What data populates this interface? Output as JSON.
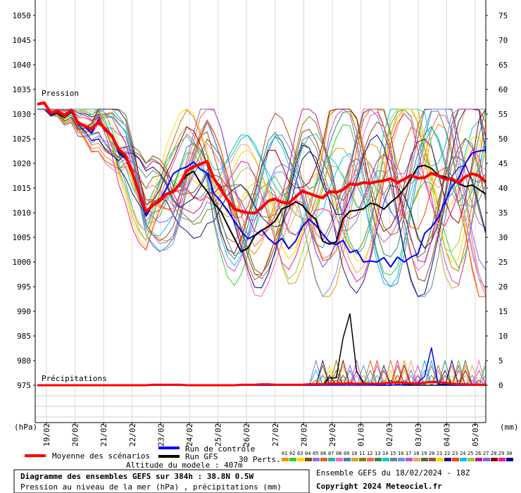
{
  "chart_data": {
    "type": "line",
    "pressure_label": "Pression",
    "precip_label": "Précipitations",
    "left_unit": "(hPa)",
    "right_unit": "(mm)",
    "pressure_ylim": [
      975,
      1050
    ],
    "pressure_ticks": [
      1050,
      1045,
      1040,
      1035,
      1030,
      1025,
      1020,
      1015,
      1010,
      1005,
      1000,
      995,
      990,
      985,
      980,
      975
    ],
    "precip_ylim": [
      0,
      75
    ],
    "precip_ticks": [
      75,
      70,
      65,
      60,
      55,
      50,
      45,
      40,
      35,
      30,
      25,
      20,
      15,
      10,
      5,
      0
    ],
    "date_ticks": [
      "19/02",
      "20/02",
      "21/02",
      "22/02",
      "23/02",
      "24/02",
      "25/02",
      "26/02",
      "27/02",
      "28/02",
      "29/02",
      "01/03",
      "02/03",
      "03/03",
      "04/03",
      "05/03"
    ],
    "step_hours": 6,
    "series": [
      {
        "name": "Moyenne des scénarios",
        "color": "#ff0000",
        "kind": "pressure",
        "values": [
          1032,
          1032.3,
          1030.2,
          1030.6,
          1029.6,
          1030.8,
          1028.2,
          1027.6,
          1026.9,
          1028.4,
          1027.0,
          1025.5,
          1022.8,
          1021.6,
          1018.0,
          1014.0,
          1010.2,
          1011.5,
          1012.5,
          1013.8,
          1014.2,
          1015.9,
          1018.5,
          1019.3,
          1019.9,
          1020.4,
          1016.9,
          1014.7,
          1012.6,
          1010.7,
          1010.3,
          1010.0,
          1009.9,
          1011.0,
          1012.4,
          1012.8,
          1012.1,
          1011.9,
          1013.2,
          1014.4,
          1013.9,
          1013.4,
          1013.0,
          1014.3,
          1014.1,
          1014.7,
          1015.8,
          1015.7,
          1016.1,
          1016.0,
          1016.3,
          1016.5,
          1016.9,
          1016.1,
          1016.8,
          1017.6,
          1017.0,
          1017.1,
          1018.0,
          1017.5,
          1016.8,
          1016.9,
          1016.1,
          1017.3,
          1017.9,
          1017.5,
          1016.2
        ]
      },
      {
        "name": "Run de contrôle",
        "color": "#0000ff",
        "kind": "pressure",
        "values": [
          1032,
          1032.3,
          1030.0,
          1030.3,
          1029.5,
          1031.0,
          1028.0,
          1027.4,
          1026.2,
          1028.8,
          1026.6,
          1025.7,
          1022.1,
          1021.0,
          1017.6,
          1013.6,
          1009.3,
          1011.6,
          1012.5,
          1014.9,
          1017.9,
          1018.8,
          1019.3,
          1020.3,
          1018.8,
          1018.0,
          1013.9,
          1012.3,
          1010.4,
          1008.3,
          1006.3,
          1004.7,
          1005.4,
          1006.5,
          1004.8,
          1003.6,
          1004.8,
          1002.7,
          1004.2,
          1007.2,
          1008.7,
          1007.4,
          1005.7,
          1004.0,
          1003.5,
          1004.4,
          1001.9,
          1002.4,
          1000.0,
          1000.2,
          1000.0,
          1000.9,
          999.0,
          1001.0,
          1000.0,
          1001.0,
          1001.6,
          1005.8,
          1007.1,
          1009.0,
          1012.2,
          1015.2,
          1017.0,
          1020.0,
          1022.1,
          1022.5,
          1022.7
        ]
      },
      {
        "name": "Run GFS",
        "color": "#000000",
        "kind": "pressure",
        "values": [
          1032,
          1032.1,
          1030.3,
          1030.1,
          1029.3,
          1030.4,
          1028.1,
          1027.7,
          1027.1,
          1028.1,
          1027.2,
          1025.2,
          1022.5,
          1021.3,
          1017.9,
          1013.5,
          1009.9,
          1011.4,
          1012.2,
          1013.6,
          1014.5,
          1015.9,
          1017.6,
          1018.4,
          1016.0,
          1014.3,
          1011.9,
          1010.3,
          1007.5,
          1004.8,
          1002.1,
          1002.8,
          1005.3,
          1006.4,
          1007.2,
          1008.3,
          1010.8,
          1011.3,
          1012.2,
          1011.5,
          1009.8,
          1008.6,
          1004.2,
          1003.6,
          1004.1,
          1008.8,
          1010.3,
          1010.5,
          1010.8,
          1011.9,
          1011.6,
          1010.7,
          1012.1,
          1013.2,
          1014.8,
          1016.9,
          1019.3,
          1019.6,
          1019.0,
          1017.6,
          1017.3,
          1016.6,
          1015.9,
          1015.3,
          1015.6,
          1014.7,
          1013.8
        ]
      },
      {
        "name": "Run GFS",
        "color": "#000000",
        "kind": "precip",
        "values": [
          0,
          0,
          0,
          0,
          0,
          0,
          0,
          0,
          0,
          0,
          0,
          0,
          0,
          0,
          0,
          0,
          0,
          0,
          0,
          0,
          0,
          0,
          0,
          0,
          0,
          0,
          0,
          0,
          0,
          0,
          0,
          0,
          0,
          0,
          0,
          0,
          0,
          0,
          0,
          0,
          0,
          0,
          0,
          1.5,
          1.5,
          9.6,
          14.5,
          2.8,
          0.5,
          0.1,
          0,
          0,
          0,
          0.1,
          0,
          0,
          0,
          0,
          0,
          0,
          0,
          0,
          0,
          0,
          0,
          0,
          0
        ]
      },
      {
        "name": "Run de contrôle",
        "color": "#0000ff",
        "kind": "precip",
        "values": [
          0,
          0,
          0,
          0,
          0,
          0,
          0,
          0,
          0,
          0,
          0,
          0,
          0,
          0,
          0,
          0,
          0,
          0,
          0,
          0,
          0,
          0,
          0,
          0,
          0,
          0,
          0,
          0,
          0,
          0,
          0,
          0,
          0,
          0,
          0,
          0,
          0,
          0,
          0,
          0,
          0,
          0,
          0,
          0,
          0,
          0,
          0,
          0,
          0,
          0,
          0,
          0,
          0,
          0.1,
          0.1,
          0.2,
          0.5,
          1.8,
          7.6,
          0.2,
          0.2,
          0,
          0,
          0,
          0,
          0,
          0
        ]
      },
      {
        "name": "Moyenne des scénarios",
        "color": "#ff0000",
        "kind": "precip",
        "values": [
          0,
          0,
          0,
          0,
          0,
          0,
          0,
          0,
          0,
          0,
          0,
          0,
          0,
          0,
          0,
          0,
          0,
          0.1,
          0.1,
          0.1,
          0.1,
          0.1,
          0,
          0,
          0,
          0,
          0,
          0,
          0,
          0,
          0.1,
          0.1,
          0.1,
          0.2,
          0.2,
          0.1,
          0.1,
          0.1,
          0.1,
          0.1,
          0.2,
          0.2,
          0.2,
          0.3,
          0.3,
          0.3,
          0.4,
          0.3,
          0.3,
          0.3,
          0.3,
          0.4,
          0.5,
          0.6,
          0.5,
          0.4,
          0.3,
          0.5,
          0.7,
          0.6,
          0.5,
          0.3,
          0.2,
          0.2,
          0.1,
          0.1,
          0.1
        ]
      }
    ],
    "perturbation_count_label": "30 Perts.",
    "perturbation_labels": [
      "01",
      "02",
      "03",
      "04",
      "05",
      "06",
      "07",
      "08",
      "09",
      "10",
      "11",
      "12",
      "13",
      "14",
      "15",
      "16",
      "17",
      "18",
      "19",
      "20",
      "21",
      "22",
      "23",
      "24",
      "25",
      "26",
      "27",
      "28",
      "29",
      "30"
    ],
    "perturbation_colors": [
      "#ff8c00",
      "#32cd32",
      "#ffd700",
      "#8b4513",
      "#9370db",
      "#d2691e",
      "#20b2aa",
      "#ff69b4",
      "#4682b4",
      "#daa520",
      "#808000",
      "#ff6347",
      "#2e8b57",
      "#00ced1",
      "#708090",
      "#6495ed",
      "#ba55d3",
      "#f4a460",
      "#556b2f",
      "#a0522d",
      "#ffd700",
      "#191970",
      "#ff4500",
      "#00bfff",
      "#9acd32",
      "#c71585",
      "#7b68ee",
      "#8b0000",
      "#ff1493",
      "#00008b"
    ]
  },
  "legend": {
    "mean_label": "Moyenne des scénarios",
    "control_label": "Run de contrôle",
    "gfs_label": "Run GFS",
    "perts_label": "30 Perts."
  },
  "footer": {
    "altitude": "Altitude du modele : 407m",
    "title": "Diagramme des ensembles GEFS sur 384h : 38.8N 0.5W",
    "subtitle": "Pression au niveau de la mer (hPa) , précipitations (mm)",
    "run_info": "Ensemble GEFS du 18/02/2024 - 18Z",
    "copyright": "Copyright 2024 Meteociel.fr"
  },
  "colors": {
    "mean": "#ff0000",
    "control": "#0000ff",
    "gfs": "#000000",
    "grid": "#a0a0a0"
  }
}
